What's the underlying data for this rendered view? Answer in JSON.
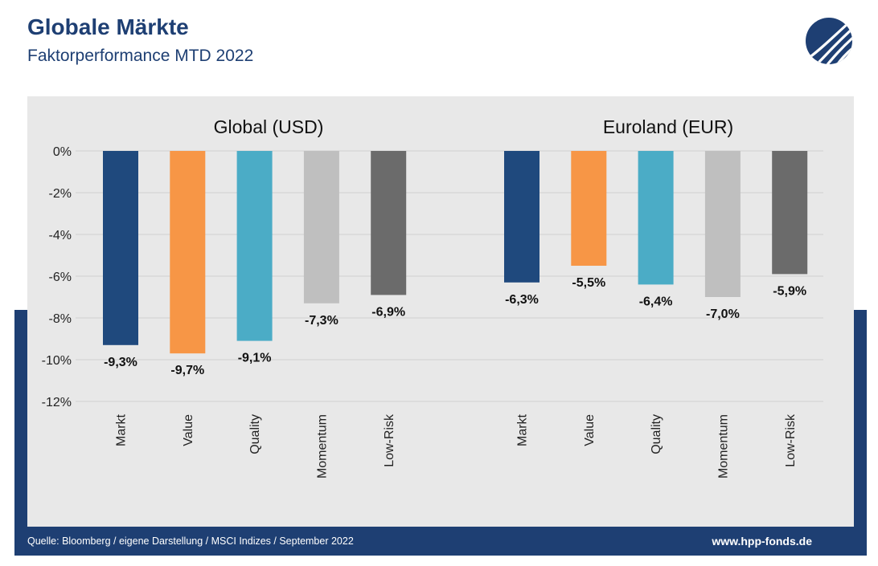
{
  "header": {
    "title": "Globale Märkte",
    "subtitle": "Faktorperformance MTD 2022"
  },
  "logo": {
    "icon": "hpp-logo-icon",
    "color": "#1e3f73"
  },
  "footer": {
    "source": "Quelle: Bloomberg / eigene Darstellung / MSCI Indizes / September 2022",
    "url": "www.hpp-fonds.de"
  },
  "colors": {
    "brand_blue": "#1e3f73",
    "panel_bg": "#e8e8e8"
  },
  "chart_data": {
    "type": "bar",
    "ylim": [
      -12,
      0
    ],
    "yticks": [
      0,
      -2,
      -4,
      -6,
      -8,
      -10,
      -12
    ],
    "ytick_labels": [
      "0%",
      "-2%",
      "-4%",
      "-6%",
      "-8%",
      "-10%",
      "-12%"
    ],
    "grid": true,
    "groups": [
      {
        "title": "Global (USD)",
        "categories": [
          "Markt",
          "Value",
          "Quality",
          "Momentum",
          "Low-Risk"
        ],
        "values": [
          -9.3,
          -9.7,
          -9.1,
          -7.3,
          -6.9
        ],
        "labels": [
          "-9,3%",
          "-9,7%",
          "-9,1%",
          "-7,3%",
          "-6,9%"
        ],
        "colors": [
          "#1f497d",
          "#f79646",
          "#4bacc6",
          "#bfbfbf",
          "#6b6b6b"
        ]
      },
      {
        "title": "Euroland (EUR)",
        "categories": [
          "Markt",
          "Value",
          "Quality",
          "Momentum",
          "Low-Risk"
        ],
        "values": [
          -6.3,
          -5.5,
          -6.4,
          -7.0,
          -5.9
        ],
        "labels": [
          "-6,3%",
          "-5,5%",
          "-6,4%",
          "-7,0%",
          "-5,9%"
        ],
        "colors": [
          "#1f497d",
          "#f79646",
          "#4bacc6",
          "#bfbfbf",
          "#6b6b6b"
        ]
      }
    ]
  }
}
